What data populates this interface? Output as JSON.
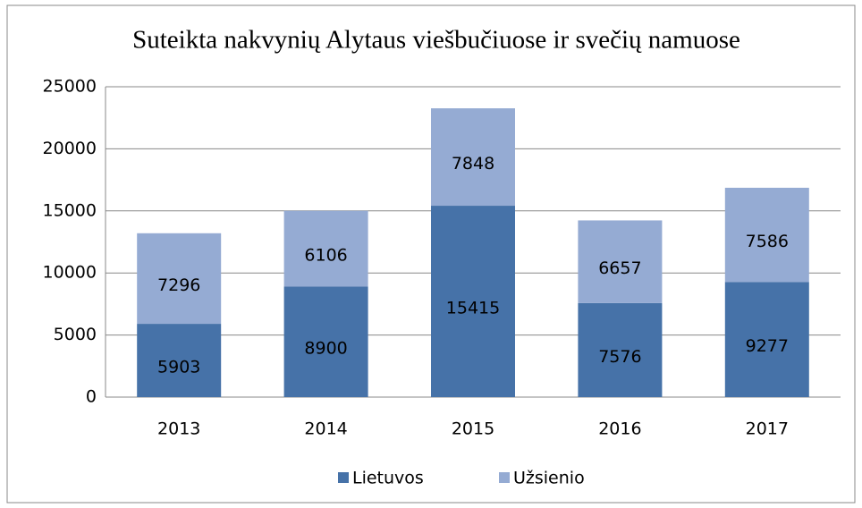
{
  "chart_data": {
    "type": "stacked_bar",
    "title": "Suteikta nakvynių Alytaus viešbučiuose ir svečių namuose",
    "categories": [
      "2013",
      "2014",
      "2015",
      "2016",
      "2017"
    ],
    "series": [
      {
        "name": "Lietuvos",
        "color": "#4672a8",
        "values": [
          5903,
          8900,
          15415,
          7576,
          9277
        ]
      },
      {
        "name": "Užsienio",
        "color": "#95abd3",
        "values": [
          7296,
          6106,
          7848,
          6657,
          7586
        ]
      }
    ],
    "ylim": [
      0,
      25000
    ],
    "yticks": [
      0,
      5000,
      10000,
      15000,
      20000,
      25000
    ],
    "grid": true,
    "legend": "bottom"
  }
}
